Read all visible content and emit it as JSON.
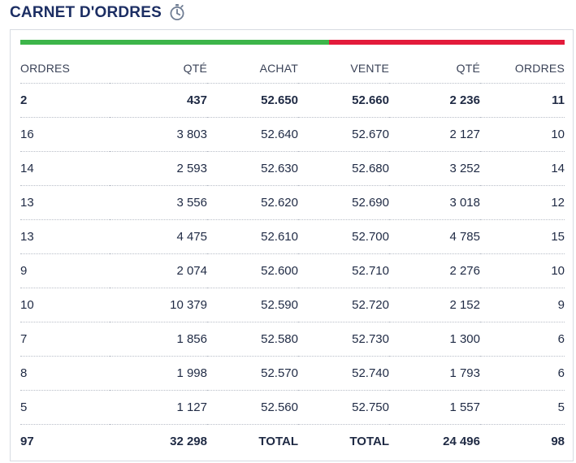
{
  "header": {
    "title": "CARNET D'ORDRES",
    "icon": "stopwatch-icon"
  },
  "colors": {
    "title": "#1c2e63",
    "bid_bar": "#3db54a",
    "ask_bar": "#e31b3b"
  },
  "table": {
    "columns": [
      "ORDRES",
      "QTÉ",
      "ACHAT",
      "VENTE",
      "QTÉ",
      "ORDRES"
    ],
    "rows": [
      [
        "2",
        "437",
        "52.650",
        "52.660",
        "2 236",
        "11"
      ],
      [
        "16",
        "3 803",
        "52.640",
        "52.670",
        "2 127",
        "10"
      ],
      [
        "14",
        "2 593",
        "52.630",
        "52.680",
        "3 252",
        "14"
      ],
      [
        "13",
        "3 556",
        "52.620",
        "52.690",
        "3 018",
        "12"
      ],
      [
        "13",
        "4 475",
        "52.610",
        "52.700",
        "4 785",
        "15"
      ],
      [
        "9",
        "2 074",
        "52.600",
        "52.710",
        "2 276",
        "10"
      ],
      [
        "10",
        "10 379",
        "52.590",
        "52.720",
        "2 152",
        "9"
      ],
      [
        "7",
        "1 856",
        "52.580",
        "52.730",
        "1 300",
        "6"
      ],
      [
        "8",
        "1 998",
        "52.570",
        "52.740",
        "1 793",
        "6"
      ],
      [
        "5",
        "1 127",
        "52.560",
        "52.750",
        "1 557",
        "5"
      ]
    ],
    "totals": [
      "97",
      "32 298",
      "TOTAL",
      "TOTAL",
      "24 496",
      "98"
    ]
  }
}
